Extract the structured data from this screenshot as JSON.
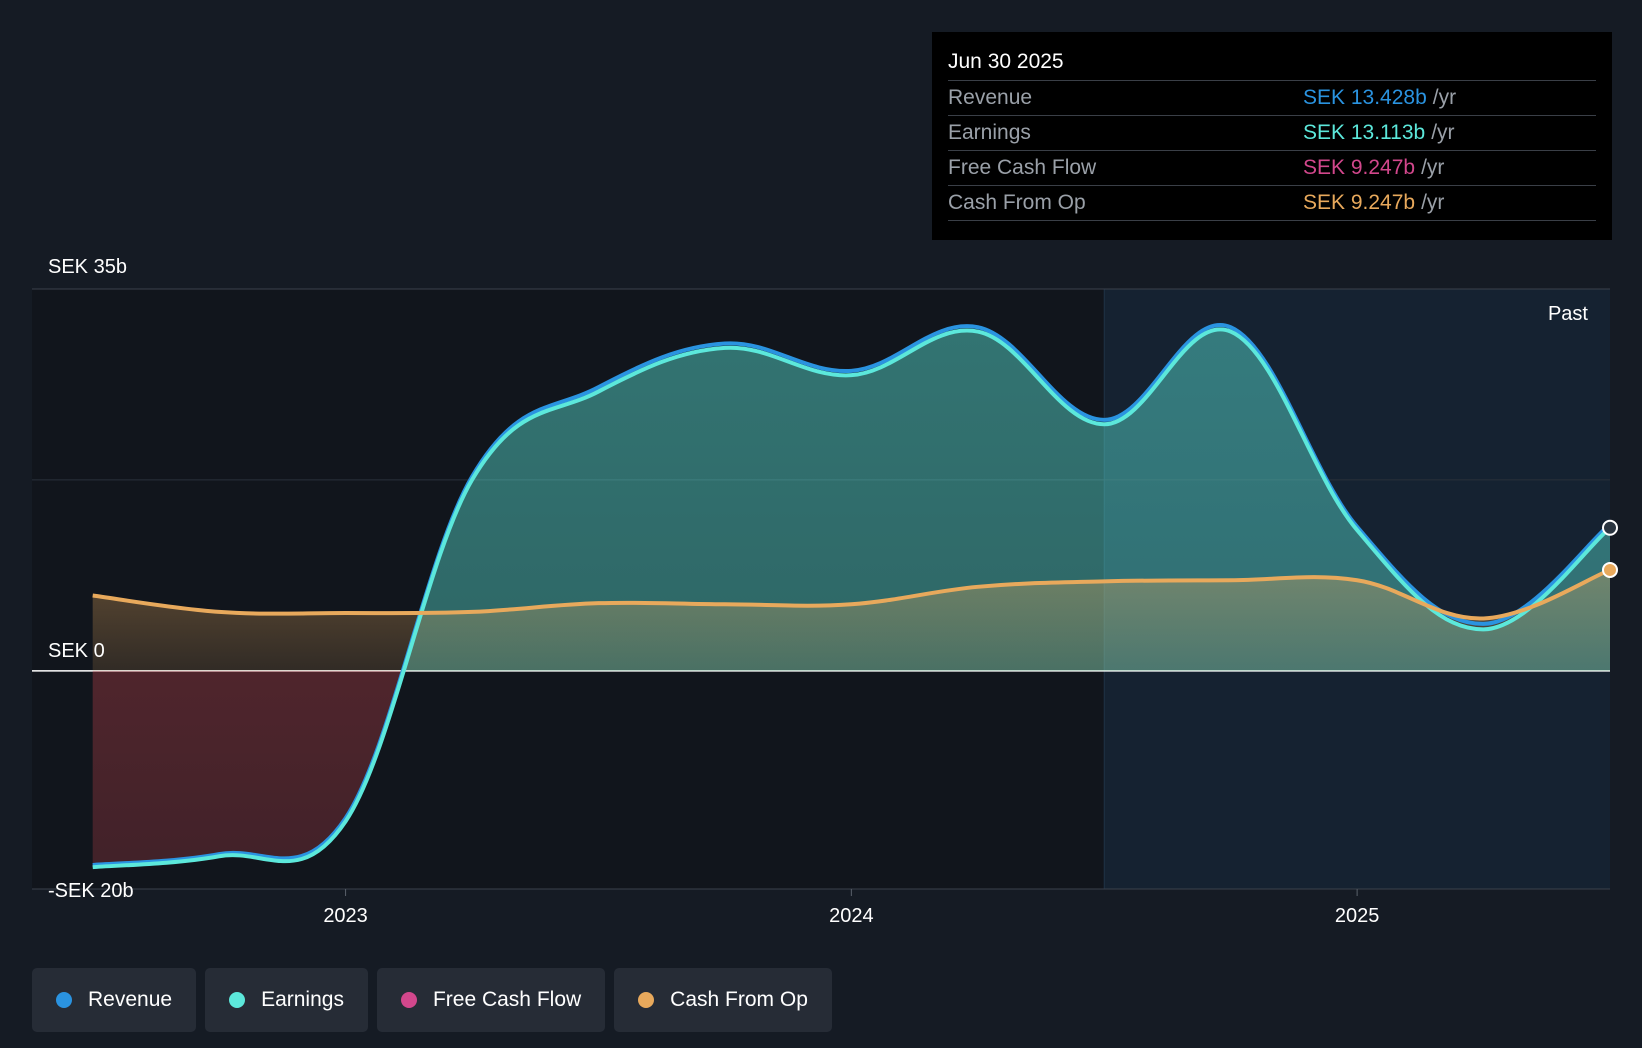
{
  "colors": {
    "revenue": "#2a93e0",
    "earnings": "#5ce8db",
    "free_cash_flow": "#d2478c",
    "cash_from_op": "#e8a95c"
  },
  "tooltip": {
    "date": "Jun 30 2025",
    "rows": [
      {
        "name": "Revenue",
        "value": "SEK 13.428b",
        "unit": "/yr",
        "color": "#2a93e0"
      },
      {
        "name": "Earnings",
        "value": "SEK 13.113b",
        "unit": "/yr",
        "color": "#5ce8db"
      },
      {
        "name": "Free Cash Flow",
        "value": "SEK 9.247b",
        "unit": "/yr",
        "color": "#d2478c"
      },
      {
        "name": "Cash From Op",
        "value": "SEK 9.247b",
        "unit": "/yr",
        "color": "#e8a95c"
      }
    ]
  },
  "legend": [
    {
      "label": "Revenue",
      "color": "#2a93e0"
    },
    {
      "label": "Earnings",
      "color": "#5ce8db"
    },
    {
      "label": "Free Cash Flow",
      "color": "#d2478c"
    },
    {
      "label": "Cash From Op",
      "color": "#e8a95c"
    }
  ],
  "chart_data": {
    "type": "area",
    "ylim": [
      -20,
      35
    ],
    "ytick_labels": [
      {
        "value": 35,
        "label": "SEK 35b"
      },
      {
        "value": 0,
        "label": "SEK 0"
      },
      {
        "value": -20,
        "label": "-SEK 20b"
      }
    ],
    "xtick_labels": [
      {
        "value": 2023.0,
        "label": "2023"
      },
      {
        "value": 2024.0,
        "label": "2024"
      },
      {
        "value": 2025.0,
        "label": "2025"
      }
    ],
    "xlim": [
      2022.38,
      2025.5
    ],
    "past_label": "Past",
    "past_region_start": 2024.5,
    "series": [
      {
        "name": "Revenue",
        "key": "revenue",
        "x": [
          2022.5,
          2022.75,
          2023.0,
          2023.25,
          2023.5,
          2023.75,
          2024.0,
          2024.25,
          2024.5,
          2024.75,
          2025.0,
          2025.25,
          2025.5
        ],
        "y": [
          -17.8,
          -16.8,
          -13.5,
          17.8,
          26.0,
          30.0,
          27.5,
          31.5,
          23.0,
          31.5,
          13.2,
          4.3,
          13.428
        ]
      },
      {
        "name": "Earnings",
        "key": "earnings",
        "x": [
          2022.5,
          2022.75,
          2023.0,
          2023.25,
          2023.5,
          2023.75,
          2024.0,
          2024.25,
          2024.5,
          2024.75,
          2025.0,
          2025.25,
          2025.5
        ],
        "y": [
          -18.0,
          -17.0,
          -13.8,
          17.5,
          25.6,
          29.6,
          27.1,
          31.1,
          22.6,
          31.1,
          12.9,
          3.8,
          13.113
        ]
      },
      {
        "name": "Free Cash Flow",
        "key": "free_cash_flow",
        "x": [
          2022.5,
          2022.75,
          2023.0,
          2023.25,
          2023.5,
          2023.75,
          2024.0,
          2024.25,
          2024.5,
          2024.75,
          2025.0,
          2025.25,
          2025.5
        ],
        "y": [
          6.9,
          5.4,
          5.3,
          5.4,
          6.2,
          6.1,
          6.1,
          7.7,
          8.2,
          8.3,
          8.3,
          4.8,
          9.247
        ]
      },
      {
        "name": "Cash From Op",
        "key": "cash_from_op",
        "x": [
          2022.5,
          2022.75,
          2023.0,
          2023.25,
          2023.5,
          2023.75,
          2024.0,
          2024.25,
          2024.5,
          2024.75,
          2025.0,
          2025.25,
          2025.5
        ],
        "y": [
          6.9,
          5.4,
          5.3,
          5.4,
          6.2,
          6.1,
          6.1,
          7.7,
          8.2,
          8.3,
          8.3,
          4.8,
          9.247
        ]
      }
    ]
  }
}
